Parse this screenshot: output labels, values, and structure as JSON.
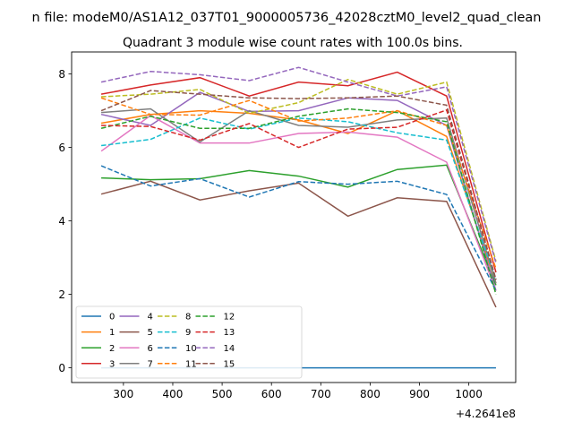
{
  "chart_data": {
    "type": "line",
    "suptitle": "n file: modeM0/AS1A12_037T01_9000005736_42028cztM0_level2_quad_clean",
    "title": "Quadrant 3 module wise count rates with 100.0s bins.",
    "xlabel": "",
    "ylabel": "",
    "x_offset_label": "+4.2641e8",
    "x": [
      255,
      355,
      455,
      555,
      655,
      755,
      855,
      955,
      1055
    ],
    "xlim": [
      195,
      1095
    ],
    "ylim": [
      -0.4,
      8.6
    ],
    "xticks": [
      300,
      400,
      500,
      600,
      700,
      800,
      900,
      1000
    ],
    "yticks": [
      0,
      2,
      4,
      6,
      8
    ],
    "grid": false,
    "legend": {
      "placement": "lower-left",
      "columns": 4
    },
    "series": [
      {
        "name": "0",
        "color": "#1f77b4",
        "dash": "solid",
        "values": [
          0,
          0,
          0,
          0,
          0,
          0,
          0,
          0,
          0
        ]
      },
      {
        "name": "1",
        "color": "#ff7f0e",
        "dash": "solid",
        "values": [
          6.66,
          6.9,
          7.0,
          6.93,
          6.75,
          6.38,
          7.0,
          6.3,
          2.3
        ]
      },
      {
        "name": "2",
        "color": "#2ca02c",
        "dash": "solid",
        "values": [
          5.17,
          5.12,
          5.15,
          5.37,
          5.22,
          4.92,
          5.4,
          5.52,
          2.25
        ]
      },
      {
        "name": "3",
        "color": "#d62728",
        "dash": "solid",
        "values": [
          7.45,
          7.7,
          7.9,
          7.4,
          7.78,
          7.68,
          8.05,
          7.4,
          2.6
        ]
      },
      {
        "name": "4",
        "color": "#9467bd",
        "dash": "solid",
        "values": [
          6.9,
          6.6,
          7.5,
          6.98,
          7.0,
          7.35,
          7.28,
          6.6,
          2.1
        ]
      },
      {
        "name": "5",
        "color": "#8c564b",
        "dash": "solid",
        "values": [
          4.73,
          5.08,
          4.57,
          4.82,
          5.03,
          4.13,
          4.63,
          4.53,
          1.65
        ]
      },
      {
        "name": "6",
        "color": "#e377c2",
        "dash": "solid",
        "values": [
          5.9,
          6.87,
          6.12,
          6.12,
          6.38,
          6.42,
          6.28,
          5.6,
          2.1
        ]
      },
      {
        "name": "7",
        "color": "#7f7f7f",
        "dash": "solid",
        "values": [
          6.95,
          7.05,
          6.15,
          7.0,
          6.6,
          6.55,
          6.75,
          6.8,
          2.3
        ]
      },
      {
        "name": "8",
        "color": "#bcbd22",
        "dash": "dashed",
        "values": [
          7.38,
          7.45,
          7.58,
          6.93,
          7.22,
          7.85,
          7.45,
          7.78,
          2.9
        ]
      },
      {
        "name": "9",
        "color": "#17becf",
        "dash": "dashed",
        "values": [
          6.05,
          6.22,
          6.8,
          6.5,
          6.8,
          6.7,
          6.4,
          6.2,
          2.4
        ]
      },
      {
        "name": "10",
        "color": "#1f77b4",
        "dash": "dashed",
        "values": [
          5.5,
          4.95,
          5.15,
          4.65,
          5.07,
          5.0,
          5.08,
          4.72,
          2.1
        ]
      },
      {
        "name": "11",
        "color": "#ff7f0e",
        "dash": "dashed",
        "values": [
          7.35,
          6.9,
          6.88,
          7.28,
          6.72,
          6.8,
          7.0,
          6.6,
          2.7
        ]
      },
      {
        "name": "12",
        "color": "#2ca02c",
        "dash": "dashed",
        "values": [
          6.52,
          6.85,
          6.52,
          6.52,
          6.85,
          7.05,
          6.95,
          6.7,
          2.0
        ]
      },
      {
        "name": "13",
        "color": "#d62728",
        "dash": "dashed",
        "values": [
          6.6,
          6.57,
          6.2,
          6.65,
          6.0,
          6.5,
          6.55,
          7.02,
          2.4
        ]
      },
      {
        "name": "14",
        "color": "#9467bd",
        "dash": "dashed",
        "values": [
          7.78,
          8.07,
          7.98,
          7.82,
          8.18,
          7.78,
          7.4,
          7.65,
          2.85
        ]
      },
      {
        "name": "15",
        "color": "#8c564b",
        "dash": "dashed",
        "values": [
          7.0,
          7.55,
          7.45,
          7.35,
          7.33,
          7.35,
          7.4,
          7.15,
          2.4
        ]
      }
    ]
  }
}
